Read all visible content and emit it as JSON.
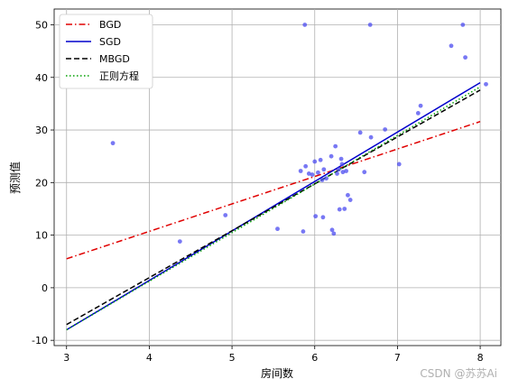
{
  "chart_data": {
    "type": "scatter",
    "xlabel": "房间数",
    "ylabel": "预测值",
    "xlim": [
      2.85,
      8.25
    ],
    "ylim": [
      -11.0,
      53.0
    ],
    "x_ticks": [
      3,
      4,
      5,
      6,
      7,
      8
    ],
    "y_ticks": [
      -10,
      0,
      10,
      20,
      30,
      40,
      50
    ],
    "grid": true,
    "legend_position": "top-left",
    "scatter": {
      "color": "#4b4bf0",
      "points": [
        [
          3.56,
          27.5
        ],
        [
          4.37,
          8.8
        ],
        [
          4.92,
          13.8
        ],
        [
          5.55,
          11.2
        ],
        [
          5.83,
          22.2
        ],
        [
          5.86,
          10.7
        ],
        [
          5.89,
          23.1
        ],
        [
          5.88,
          50.0
        ],
        [
          5.93,
          21.7
        ],
        [
          5.97,
          21.5
        ],
        [
          6.0,
          24.0
        ],
        [
          6.01,
          13.6
        ],
        [
          6.04,
          21.9
        ],
        [
          6.07,
          24.3
        ],
        [
          6.09,
          20.5
        ],
        [
          6.1,
          13.4
        ],
        [
          6.11,
          22.5
        ],
        [
          6.14,
          20.8
        ],
        [
          6.2,
          25.0
        ],
        [
          6.21,
          11.0
        ],
        [
          6.23,
          10.3
        ],
        [
          6.25,
          26.9
        ],
        [
          6.27,
          21.7
        ],
        [
          6.29,
          22.5
        ],
        [
          6.3,
          14.9
        ],
        [
          6.32,
          24.5
        ],
        [
          6.33,
          23.5
        ],
        [
          6.34,
          22.0
        ],
        [
          6.36,
          15.0
        ],
        [
          6.38,
          22.2
        ],
        [
          6.4,
          17.6
        ],
        [
          6.43,
          16.7
        ],
        [
          6.55,
          29.5
        ],
        [
          6.6,
          22.0
        ],
        [
          6.67,
          50.0
        ],
        [
          6.68,
          28.6
        ],
        [
          6.85,
          30.1
        ],
        [
          7.02,
          23.5
        ],
        [
          7.25,
          33.2
        ],
        [
          7.28,
          34.6
        ],
        [
          7.65,
          46.0
        ],
        [
          7.79,
          50.0
        ],
        [
          7.82,
          43.8
        ],
        [
          8.07,
          38.7
        ]
      ]
    },
    "series": [
      {
        "name": "BGD",
        "color": "#e00000",
        "dash": "dashdot",
        "x": [
          3.0,
          8.0
        ],
        "y": [
          5.5,
          31.6
        ]
      },
      {
        "name": "SGD",
        "color": "#0000cc",
        "dash": "solid",
        "x": [
          3.0,
          8.0
        ],
        "y": [
          -8.0,
          39.0
        ]
      },
      {
        "name": "MBGD",
        "color": "#000000",
        "dash": "dashed",
        "x": [
          3.0,
          8.0
        ],
        "y": [
          -7.0,
          37.6
        ]
      },
      {
        "name": "正则方程",
        "color": "#00a000",
        "dash": "dotted",
        "x": [
          3.0,
          8.0
        ],
        "y": [
          -8.0,
          38.2
        ]
      }
    ]
  },
  "watermark": "CSDN @苏苏Ai"
}
